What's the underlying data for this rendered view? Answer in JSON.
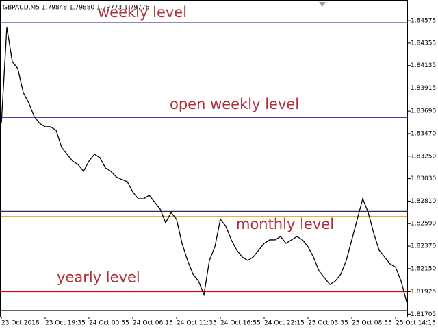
{
  "chart_data": {
    "type": "line",
    "title": "GBPAUD,M5  1.79848 1.79880 1.79773 1.79776",
    "categories": [
      "23 Oct 2018",
      null,
      null,
      null,
      null,
      null,
      null,
      null,
      "23 Oct 19:35",
      null,
      null,
      null,
      null,
      null,
      null,
      null,
      "24 Oct 00:55",
      null,
      null,
      null,
      null,
      null,
      null,
      null,
      "24 Oct 06:15",
      null,
      null,
      null,
      null,
      null,
      null,
      null,
      "24 Oct 11:35",
      null,
      null,
      null,
      null,
      null,
      null,
      null,
      "24 Oct 16:55",
      null,
      null,
      null,
      null,
      null,
      null,
      null,
      "24 Oct 22:15",
      null,
      null,
      null,
      null,
      null,
      null,
      null,
      "25 Oct 03:35",
      null,
      null,
      null,
      null,
      null,
      null,
      null,
      "25 Oct 08:55",
      null,
      null,
      null,
      null,
      null,
      null,
      null,
      "25 Oct 14:15",
      null,
      null
    ],
    "values": [
      1.8357,
      1.84509,
      1.84174,
      1.84107,
      1.83872,
      1.83771,
      1.83637,
      1.8357,
      1.83537,
      1.83537,
      1.83503,
      1.83336,
      1.83269,
      1.83202,
      1.83168,
      1.83101,
      1.83202,
      1.83269,
      1.83235,
      1.83135,
      1.83101,
      1.83047,
      1.83021,
      1.83001,
      1.829,
      1.82833,
      1.82833,
      1.82867,
      1.828,
      1.82732,
      1.82598,
      1.82699,
      1.82632,
      1.82397,
      1.8223,
      1.82096,
      1.82029,
      1.81895,
      1.8223,
      1.82364,
      1.82632,
      1.82565,
      1.82431,
      1.8233,
      1.82263,
      1.8223,
      1.82263,
      1.8233,
      1.82397,
      1.82431,
      1.82431,
      1.82464,
      1.82397,
      1.82431,
      1.82464,
      1.82431,
      1.82364,
      1.82263,
      1.82129,
      1.82062,
      1.81995,
      1.82029,
      1.82096,
      1.8223,
      1.82431,
      1.82632,
      1.82833,
      1.82699,
      1.82498,
      1.8233,
      1.82263,
      1.82196,
      1.82163,
      1.82029,
      1.81828
    ],
    "color": "#000000",
    "ylim": [
      1.8168,
      1.8475
    ],
    "yticks": [
      1.84575,
      1.84355,
      1.84135,
      1.83915,
      {
        "value": 1.8369,
        "label": "1.83690"
      },
      {
        "value": 1.8347,
        "label": "1.83470"
      },
      {
        "value": 1.8325,
        "label": "1.83250"
      },
      {
        "value": 1.8303,
        "label": "1.83030"
      },
      {
        "value": 1.8281,
        "label": "1.82810"
      },
      {
        "value": 1.8259,
        "label": "1.82590"
      },
      {
        "value": 1.8237,
        "label": "1.82370"
      },
      {
        "value": 1.8215,
        "label": "1.82150"
      },
      1.81925,
      1.81705
    ],
    "levels": [
      {
        "value": 1.84555,
        "color": "#1a1a6e",
        "label": "weekly level"
      },
      {
        "value": 1.8363,
        "color": "#00008b",
        "label": "open weekly level"
      },
      {
        "value": 1.8271,
        "color": "#2f2f4f"
      },
      {
        "value": 1.8266,
        "color": "#f0a020",
        "label": "monthly level"
      },
      {
        "value": 1.81925,
        "color": "#e00000",
        "label": "yearly level"
      },
      {
        "value": 1.8174,
        "color": "#2f2f4f"
      }
    ],
    "label_color": "#b0303a"
  }
}
